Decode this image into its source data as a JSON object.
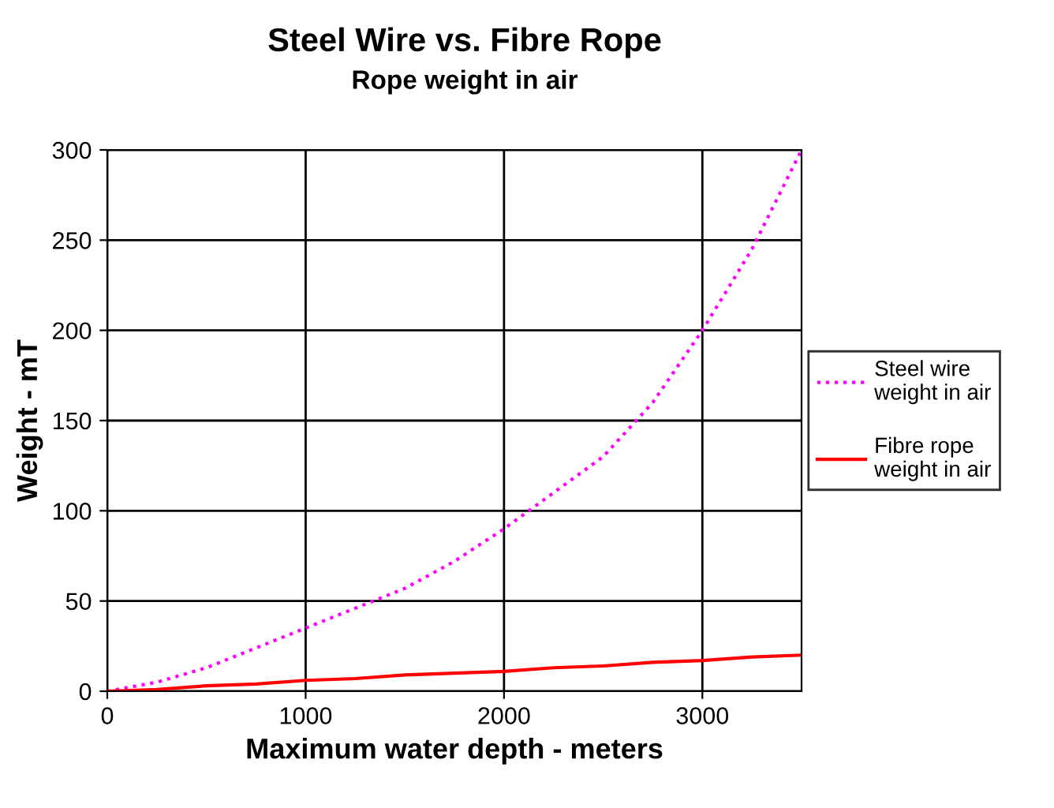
{
  "chart_data": {
    "type": "line",
    "title": "Steel Wire vs. Fibre Rope",
    "subtitle": "Rope weight in air",
    "xlabel": "Maximum water depth - meters",
    "ylabel": "Weight - mT",
    "x": [
      0,
      250,
      500,
      750,
      1000,
      1250,
      1500,
      1750,
      2000,
      2250,
      2500,
      2750,
      3000,
      3250,
      3500
    ],
    "series": [
      {
        "name": "Steel wire\nweight in air",
        "color": "#ff00ff",
        "line_style": "dotted",
        "values": [
          0,
          5,
          13,
          24,
          35,
          46,
          57,
          72,
          90,
          110,
          130,
          160,
          200,
          245,
          300
        ]
      },
      {
        "name": "Fibre rope\nweight in air",
        "color": "#ff0000",
        "line_style": "solid",
        "values": [
          0,
          1,
          3,
          4,
          6,
          7,
          9,
          10,
          11,
          13,
          14,
          16,
          17,
          19,
          20
        ]
      }
    ],
    "xlim": [
      0,
      3500
    ],
    "xticks": [
      0,
      1000,
      2000,
      3000
    ],
    "ylim": [
      0,
      300
    ],
    "yticks": [
      0,
      50,
      100,
      150,
      200,
      250,
      300
    ],
    "grid": true,
    "legend": "right"
  }
}
